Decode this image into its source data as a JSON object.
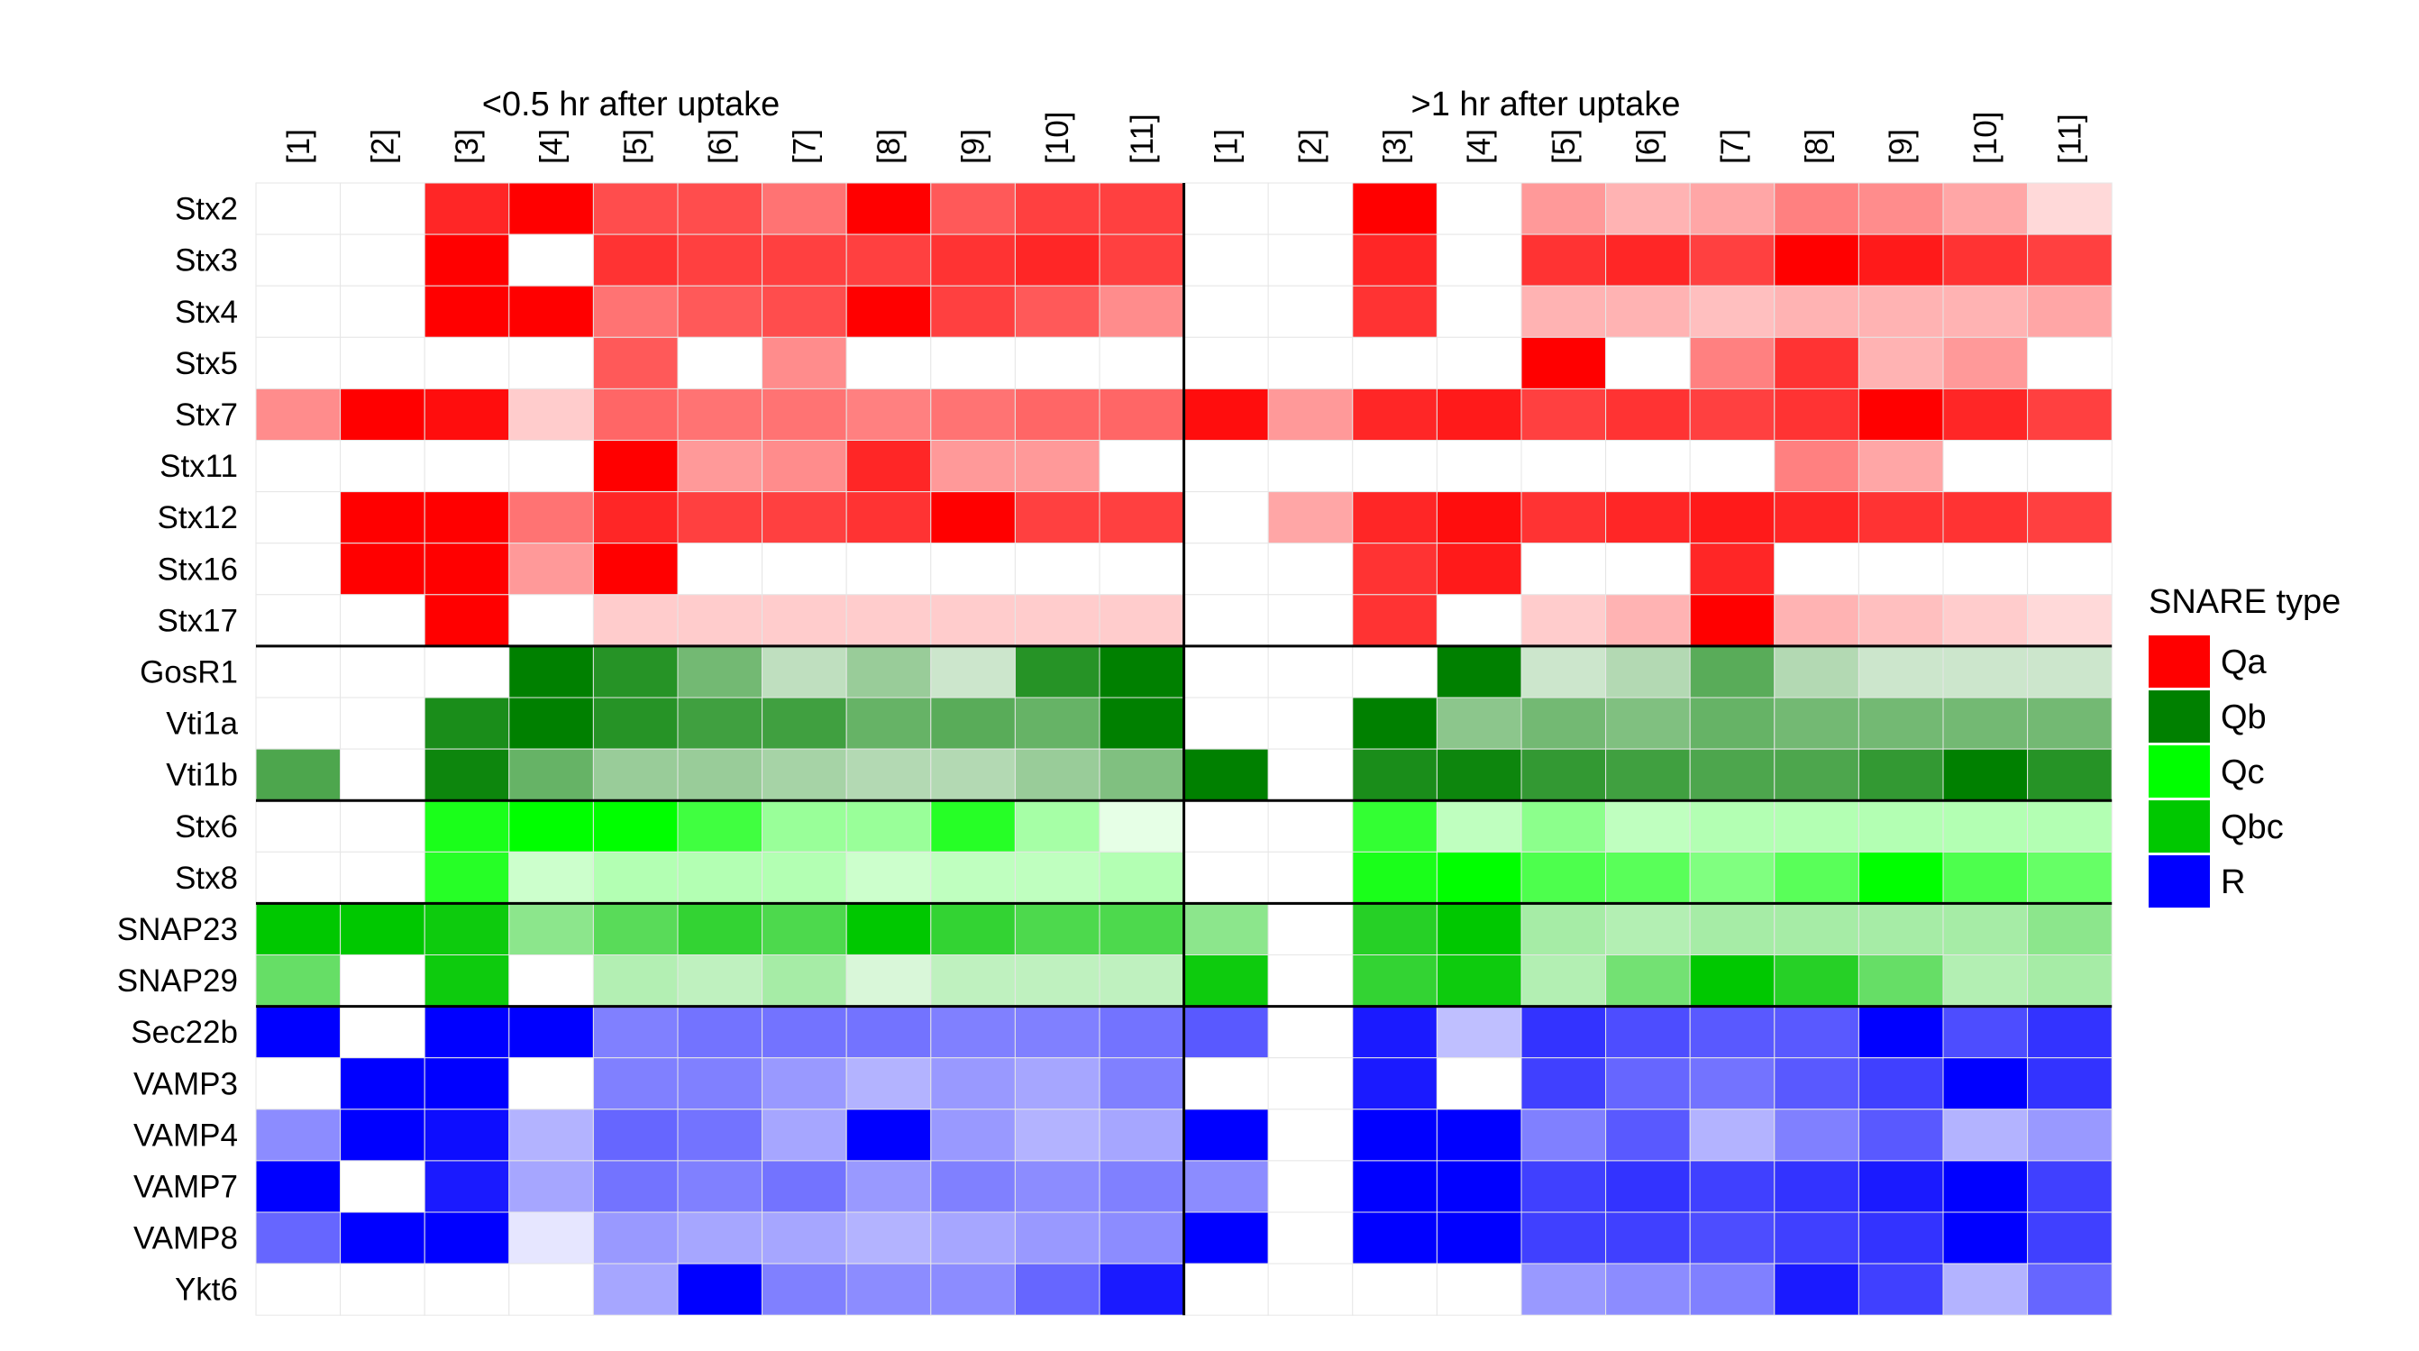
{
  "chart_data": {
    "type": "heatmap",
    "panel_titles": [
      "<0.5 hr after uptake",
      ">1 hr after uptake"
    ],
    "columns": [
      "[1]",
      "[2]",
      "[3]",
      "[4]",
      "[5]",
      "[6]",
      "[7]",
      "[8]",
      "[9]",
      "[10]",
      "[11]"
    ],
    "legend": {
      "title": "SNARE type",
      "placement": "right",
      "entries": [
        {
          "label": "Qa",
          "color": "#ff0000"
        },
        {
          "label": "Qb",
          "color": "#008000"
        },
        {
          "label": "Qc",
          "color": "#00ff00"
        },
        {
          "label": "Qbc",
          "color": "#00c800"
        },
        {
          "label": "R",
          "color": "#0000ff"
        }
      ]
    },
    "type_colors": {
      "Qa": "#ff0000",
      "Qb": "#008000",
      "Qc": "#00ff00",
      "Qbc": "#00c800",
      "R": "#0000ff"
    },
    "intensity_scale": [
      0,
      1
    ],
    "rows": [
      {
        "name": "Stx2",
        "type": "Qa",
        "values": [
          0,
          0,
          0.85,
          1,
          0.7,
          0.7,
          0.55,
          1,
          0.65,
          0.75,
          0.75,
          0,
          0,
          1,
          0,
          0.4,
          0.3,
          0.35,
          0.5,
          0.45,
          0.35,
          0.15
        ]
      },
      {
        "name": "Stx3",
        "type": "Qa",
        "values": [
          0,
          0,
          1,
          0,
          0.8,
          0.75,
          0.75,
          0.75,
          0.8,
          0.85,
          0.75,
          0,
          0,
          0.85,
          0,
          0.8,
          0.85,
          0.75,
          1,
          0.9,
          0.8,
          0.75
        ]
      },
      {
        "name": "Stx4",
        "type": "Qa",
        "values": [
          0,
          0,
          1,
          1,
          0.55,
          0.65,
          0.7,
          1,
          0.75,
          0.65,
          0.45,
          0,
          0,
          0.8,
          0,
          0.3,
          0.3,
          0.25,
          0.3,
          0.3,
          0.3,
          0.35
        ]
      },
      {
        "name": "Stx5",
        "type": "Qa",
        "values": [
          0,
          0,
          0,
          0,
          0.65,
          0,
          0.45,
          0,
          0,
          0,
          0,
          0,
          0,
          0,
          0,
          1,
          0,
          0.5,
          0.8,
          0.3,
          0.4,
          0
        ]
      },
      {
        "name": "Stx7",
        "type": "Qa",
        "values": [
          0.45,
          1,
          0.95,
          0.2,
          0.6,
          0.55,
          0.55,
          0.5,
          0.55,
          0.6,
          0.6,
          0.95,
          0.4,
          0.85,
          0.9,
          0.75,
          0.8,
          0.75,
          0.8,
          1,
          0.85,
          0.75
        ]
      },
      {
        "name": "Stx11",
        "type": "Qa",
        "values": [
          0,
          0,
          0,
          0,
          1,
          0.4,
          0.45,
          0.85,
          0.4,
          0.4,
          0,
          0,
          0,
          0,
          0,
          0,
          0,
          0,
          0.5,
          0.35,
          0,
          0
        ]
      },
      {
        "name": "Stx12",
        "type": "Qa",
        "values": [
          0,
          1,
          1,
          0.55,
          0.85,
          0.75,
          0.75,
          0.8,
          1,
          0.75,
          0.75,
          0,
          0.35,
          0.85,
          0.95,
          0.8,
          0.85,
          0.9,
          0.85,
          0.8,
          0.8,
          0.75
        ]
      },
      {
        "name": "Stx16",
        "type": "Qa",
        "values": [
          0,
          1,
          1,
          0.4,
          1,
          0,
          0,
          0,
          0,
          0,
          0,
          0,
          0,
          0.8,
          0.9,
          0,
          0,
          0.85,
          0,
          0,
          0,
          0
        ]
      },
      {
        "name": "Stx17",
        "type": "Qa",
        "values": [
          0,
          0,
          1,
          0,
          0.2,
          0.2,
          0.2,
          0.2,
          0.2,
          0.2,
          0.2,
          0,
          0,
          0.8,
          0,
          0.2,
          0.3,
          1,
          0.3,
          0.25,
          0.2,
          0.15
        ]
      },
      {
        "name": "GosR1",
        "type": "Qb",
        "values": [
          0,
          0,
          0,
          1,
          0.85,
          0.55,
          0.25,
          0.4,
          0.2,
          0.85,
          1,
          0,
          0,
          0,
          1,
          0.2,
          0.3,
          0.65,
          0.3,
          0.2,
          0.2,
          0.2
        ]
      },
      {
        "name": "Vti1a",
        "type": "Qb",
        "values": [
          0,
          0,
          0.9,
          1,
          0.85,
          0.75,
          0.75,
          0.6,
          0.65,
          0.6,
          1,
          0,
          0,
          1,
          0.45,
          0.55,
          0.5,
          0.6,
          0.55,
          0.55,
          0.55,
          0.55
        ]
      },
      {
        "name": "Vti1b",
        "type": "Qb",
        "values": [
          0.7,
          0,
          0.95,
          0.6,
          0.4,
          0.4,
          0.35,
          0.3,
          0.3,
          0.4,
          0.5,
          1,
          0,
          0.9,
          0.95,
          0.8,
          0.75,
          0.7,
          0.7,
          0.8,
          1,
          0.85
        ]
      },
      {
        "name": "Stx6",
        "type": "Qc",
        "values": [
          0,
          0,
          0.9,
          1,
          1,
          0.75,
          0.4,
          0.4,
          0.85,
          0.35,
          0.1,
          0,
          0,
          0.8,
          0.25,
          0.45,
          0.25,
          0.3,
          0.3,
          0.3,
          0.3,
          0.3
        ]
      },
      {
        "name": "Stx8",
        "type": "Qc",
        "values": [
          0,
          0,
          0.85,
          0.2,
          0.3,
          0.3,
          0.3,
          0.2,
          0.25,
          0.25,
          0.3,
          0,
          0,
          0.9,
          1,
          0.7,
          0.65,
          0.5,
          0.65,
          1,
          0.7,
          0.6
        ]
      },
      {
        "name": "SNAP23",
        "type": "Qbc",
        "values": [
          1,
          1,
          0.95,
          0.45,
          0.65,
          0.8,
          0.7,
          1,
          0.8,
          0.7,
          0.7,
          0.45,
          0,
          0.85,
          1,
          0.35,
          0.3,
          0.35,
          0.35,
          0.35,
          0.35,
          0.45
        ]
      },
      {
        "name": "SNAP29",
        "type": "Qbc",
        "values": [
          0.6,
          0,
          0.95,
          0,
          0.3,
          0.25,
          0.35,
          0.15,
          0.25,
          0.25,
          0.25,
          0.95,
          0,
          0.8,
          0.95,
          0.3,
          0.55,
          1,
          0.85,
          0.6,
          0.3,
          0.35
        ]
      },
      {
        "name": "Sec22b",
        "type": "R",
        "values": [
          1,
          0,
          1,
          1,
          0.5,
          0.55,
          0.55,
          0.55,
          0.5,
          0.5,
          0.55,
          0.65,
          0,
          0.9,
          0.25,
          0.8,
          0.7,
          0.65,
          0.65,
          1,
          0.7,
          0.8
        ]
      },
      {
        "name": "VAMP3",
        "type": "R",
        "values": [
          0,
          1,
          1,
          0,
          0.5,
          0.5,
          0.4,
          0.3,
          0.4,
          0.35,
          0.5,
          0,
          0,
          0.9,
          0,
          0.75,
          0.6,
          0.55,
          0.65,
          0.75,
          1,
          0.8
        ]
      },
      {
        "name": "VAMP4",
        "type": "R",
        "values": [
          0.45,
          1,
          0.95,
          0.3,
          0.6,
          0.55,
          0.35,
          1,
          0.4,
          0.3,
          0.35,
          1,
          0,
          1,
          1,
          0.5,
          0.65,
          0.3,
          0.5,
          0.65,
          0.3,
          0.4
        ]
      },
      {
        "name": "VAMP7",
        "type": "R",
        "values": [
          1,
          0,
          0.9,
          0.35,
          0.55,
          0.5,
          0.55,
          0.4,
          0.5,
          0.45,
          0.5,
          0.45,
          0,
          1,
          1,
          0.75,
          0.8,
          0.75,
          0.8,
          0.9,
          1,
          0.75
        ]
      },
      {
        "name": "VAMP8",
        "type": "R",
        "values": [
          0.6,
          1,
          1,
          0.1,
          0.4,
          0.35,
          0.35,
          0.3,
          0.35,
          0.4,
          0.45,
          1,
          0,
          1,
          1,
          0.75,
          0.75,
          0.7,
          0.75,
          0.8,
          1,
          0.75
        ]
      },
      {
        "name": "Ykt6",
        "type": "R",
        "values": [
          0,
          0,
          0,
          0,
          0.35,
          1,
          0.5,
          0.45,
          0.45,
          0.6,
          0.9,
          0,
          0,
          0,
          0,
          0.4,
          0.45,
          0.5,
          0.9,
          0.75,
          0.3,
          0.6
        ]
      }
    ]
  }
}
